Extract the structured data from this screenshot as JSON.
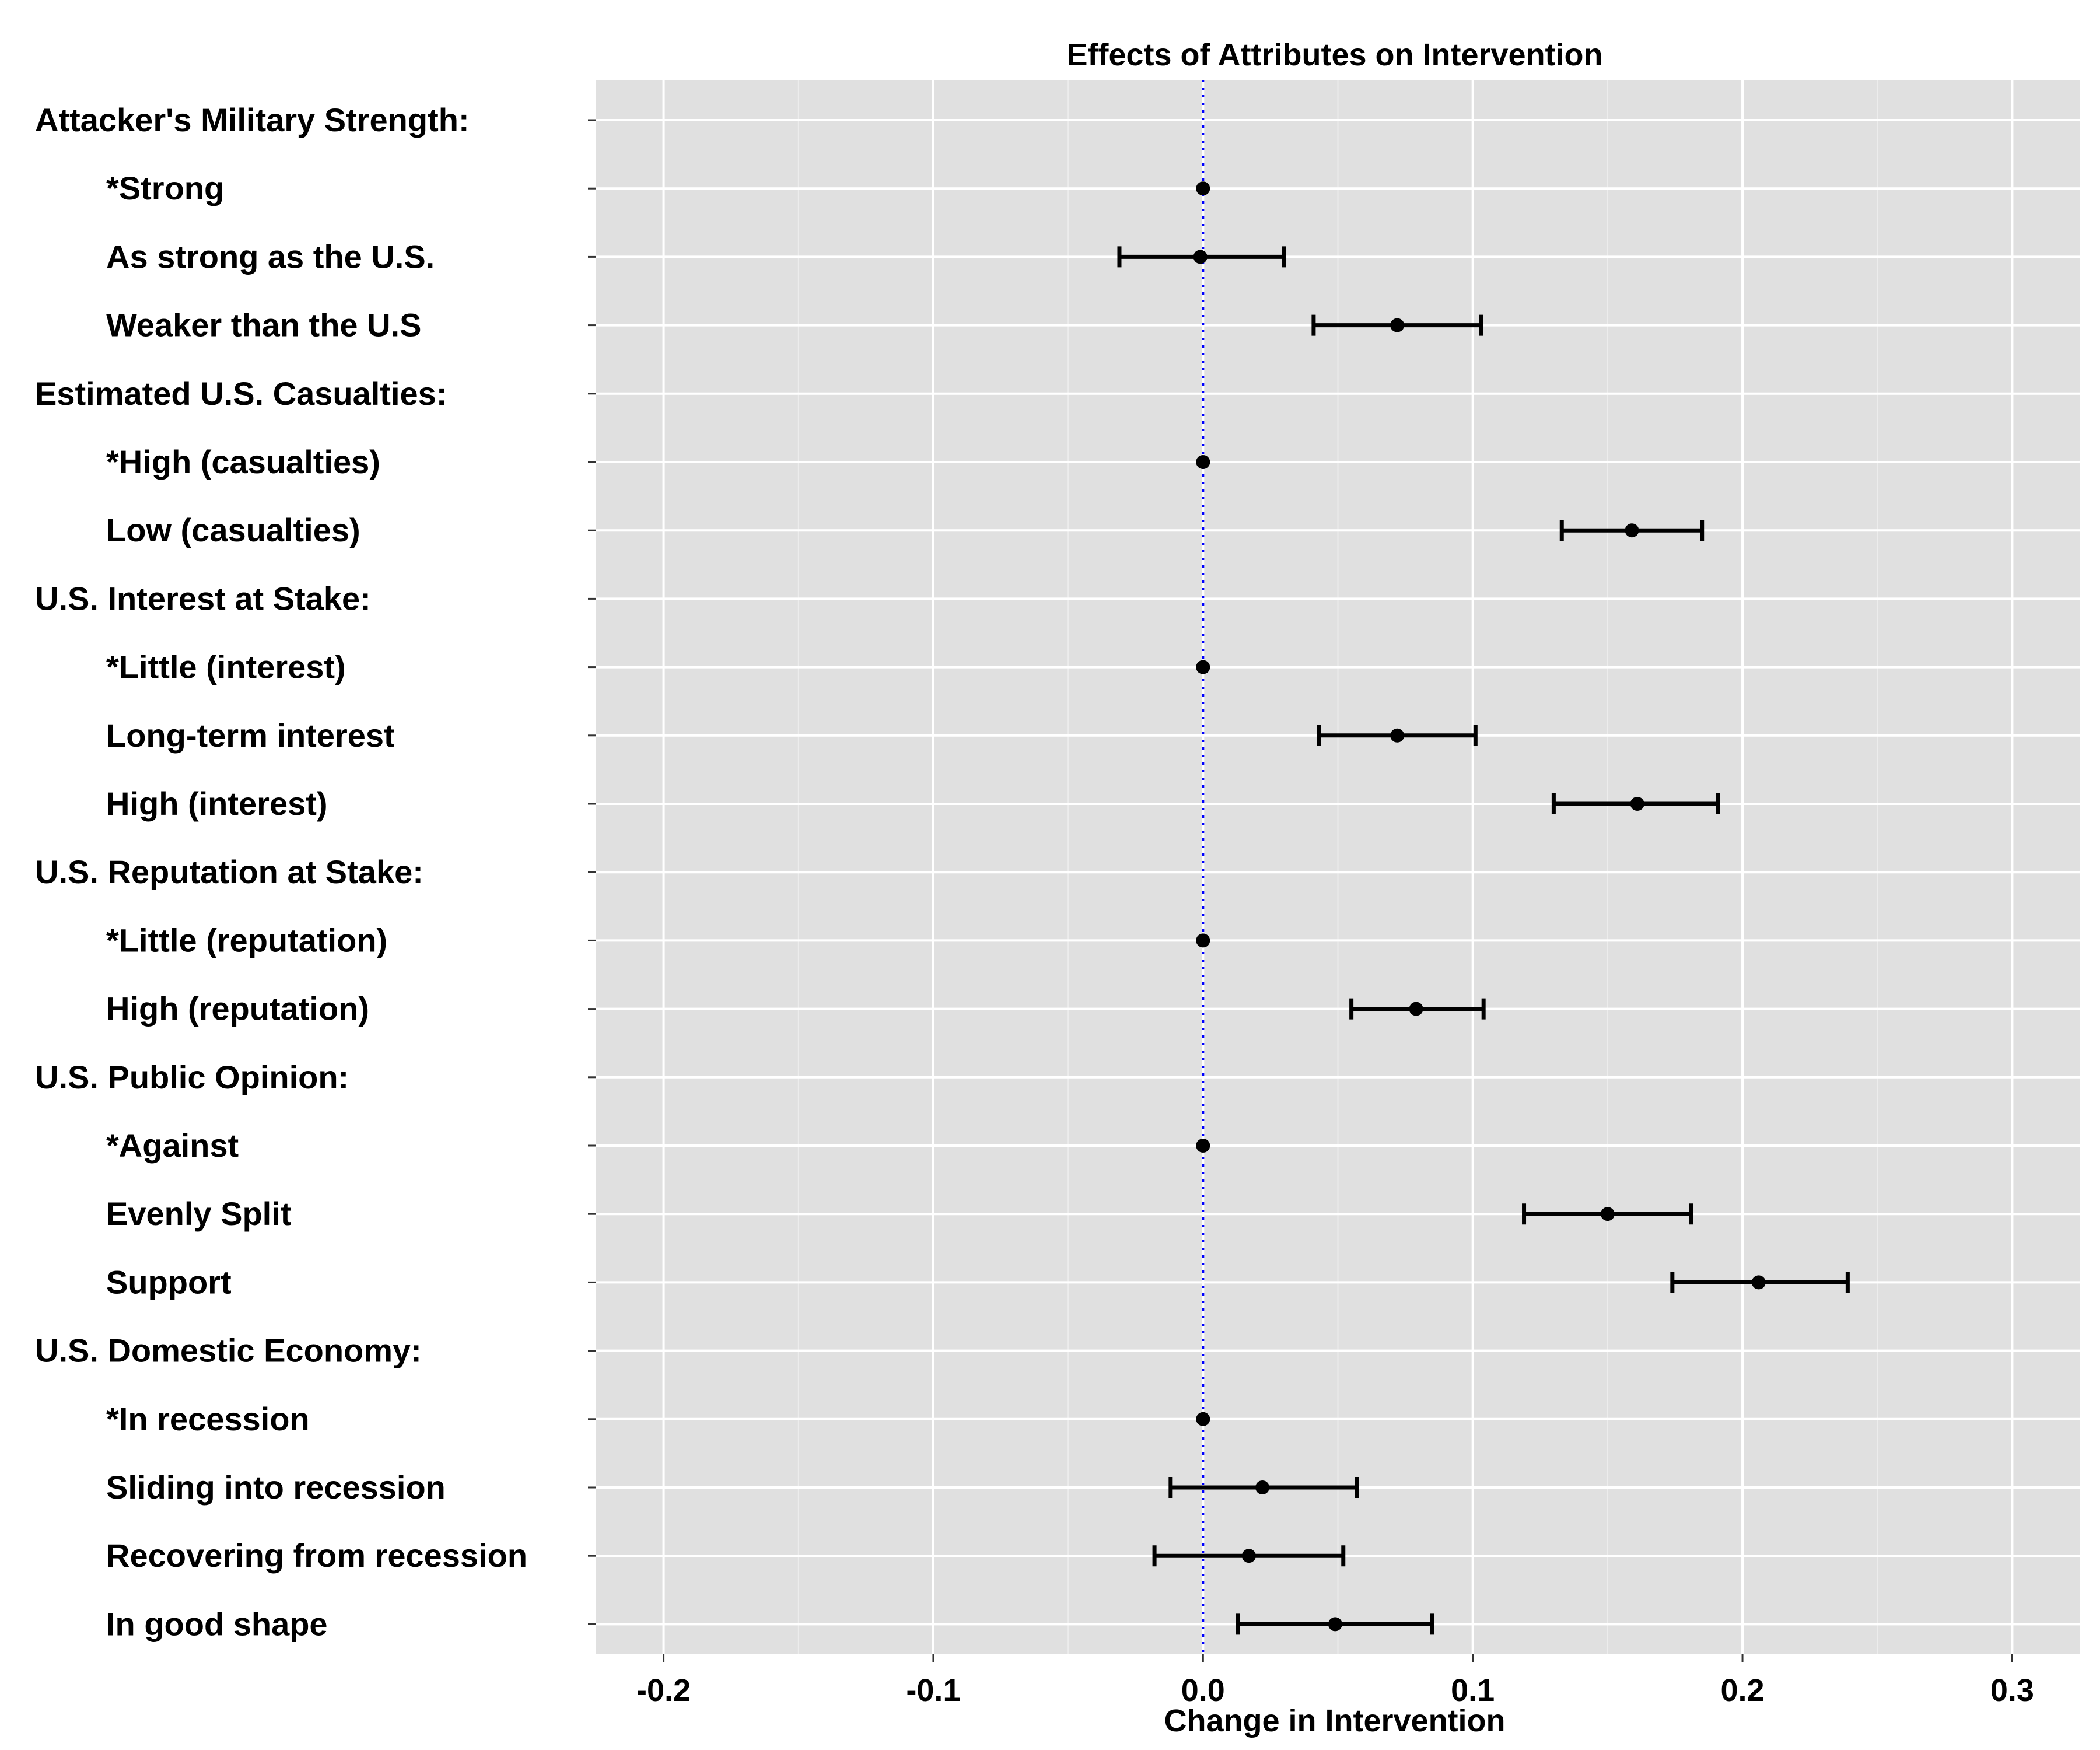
{
  "chart_data": {
    "type": "scatter",
    "subtype": "coefficient-plot-with-confidence-intervals",
    "title": "Effects of Attributes on Intervention",
    "xlabel": "Change in Intervention",
    "ylabel": "",
    "xlim": [
      -0.225,
      0.325
    ],
    "x_ticks": [
      -0.2,
      -0.1,
      0.0,
      0.1,
      0.2,
      0.3
    ],
    "x_tick_labels": [
      "-0.2",
      "-0.1",
      "0.0",
      "0.1",
      "0.2",
      "0.3"
    ],
    "reference_line": {
      "x": 0,
      "style": "dotted",
      "color": "#0000ff"
    },
    "panel_background": "#e0e0e0",
    "grid": true,
    "point_color": "#000000",
    "rows": [
      {
        "label": "Attacker's Military Strength:",
        "header": true
      },
      {
        "label": "*Strong",
        "header": false,
        "estimate": 0.0,
        "lower": 0.0,
        "upper": 0.0
      },
      {
        "label": "As strong as the U.S.",
        "header": false,
        "estimate": -0.001,
        "lower": -0.031,
        "upper": 0.03
      },
      {
        "label": "Weaker than the U.S",
        "header": false,
        "estimate": 0.072,
        "lower": 0.041,
        "upper": 0.103
      },
      {
        "label": "Estimated U.S. Casualties:",
        "header": true
      },
      {
        "label": "*High (casualties)",
        "header": false,
        "estimate": 0.0,
        "lower": 0.0,
        "upper": 0.0
      },
      {
        "label": "Low (casualties)",
        "header": false,
        "estimate": 0.159,
        "lower": 0.133,
        "upper": 0.185
      },
      {
        "label": "U.S. Interest at Stake:",
        "header": true
      },
      {
        "label": "*Little (interest)",
        "header": false,
        "estimate": 0.0,
        "lower": 0.0,
        "upper": 0.0
      },
      {
        "label": "Long-term interest",
        "header": false,
        "estimate": 0.072,
        "lower": 0.043,
        "upper": 0.101
      },
      {
        "label": "High (interest)",
        "header": false,
        "estimate": 0.161,
        "lower": 0.13,
        "upper": 0.191
      },
      {
        "label": "U.S. Reputation at Stake:",
        "header": true
      },
      {
        "label": "*Little (reputation)",
        "header": false,
        "estimate": 0.0,
        "lower": 0.0,
        "upper": 0.0
      },
      {
        "label": "High (reputation)",
        "header": false,
        "estimate": 0.079,
        "lower": 0.055,
        "upper": 0.104
      },
      {
        "label": "U.S. Public Opinion:",
        "header": true
      },
      {
        "label": "*Against",
        "header": false,
        "estimate": 0.0,
        "lower": 0.0,
        "upper": 0.0
      },
      {
        "label": "Evenly Split",
        "header": false,
        "estimate": 0.15,
        "lower": 0.119,
        "upper": 0.181
      },
      {
        "label": "Support",
        "header": false,
        "estimate": 0.206,
        "lower": 0.174,
        "upper": 0.239
      },
      {
        "label": "U.S. Domestic Economy:",
        "header": true
      },
      {
        "label": "*In recession",
        "header": false,
        "estimate": 0.0,
        "lower": 0.0,
        "upper": 0.0
      },
      {
        "label": "Sliding into recession",
        "header": false,
        "estimate": 0.022,
        "lower": -0.012,
        "upper": 0.057
      },
      {
        "label": "Recovering from recession",
        "header": false,
        "estimate": 0.017,
        "lower": -0.018,
        "upper": 0.052
      },
      {
        "label": "In good shape",
        "header": false,
        "estimate": 0.049,
        "lower": 0.013,
        "upper": 0.085
      }
    ]
  }
}
